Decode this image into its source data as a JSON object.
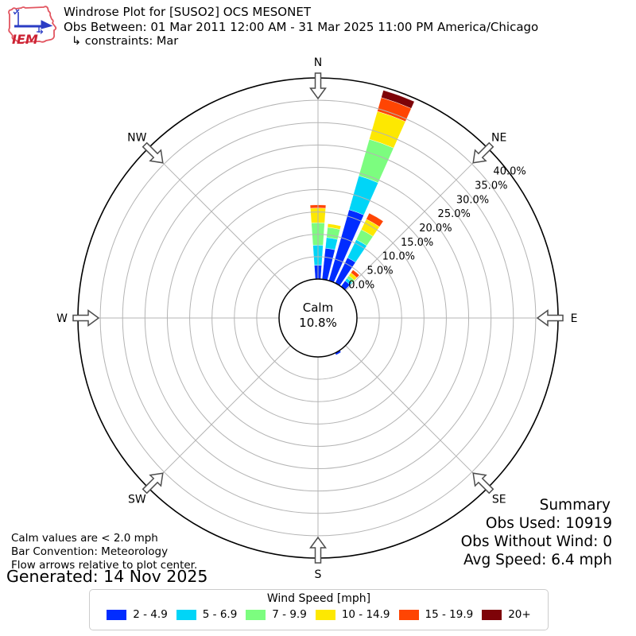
{
  "header": {
    "logo": "IEM",
    "title": "Windrose Plot for [SUSO2] OCS MESONET",
    "obs_between": "Obs Between: 01 Mar 2011 12:00 AM - 31 Mar 2025 11:00 PM America/Chicago",
    "constraints": "↳ constraints: Mar"
  },
  "footnotes": {
    "calm_note": "Calm values are < 2.0 mph",
    "bar_convention": "Bar Convention: Meteorology",
    "flow_arrows": "Flow arrows relative to plot center.",
    "generated": "Generated: 14 Nov 2025"
  },
  "summary": {
    "title": "Summary",
    "obs_used": "Obs Used: 10919",
    "obs_without_wind": "Obs Without Wind: 0",
    "avg_speed": "Avg Speed: 6.4 mph"
  },
  "legend": {
    "title": "Wind Speed [mph]"
  },
  "chart_data": {
    "type": "windrose",
    "units": "mph",
    "title": "Windrose Plot for [SUSO2] OCS MESONET",
    "compass_labels": [
      "N",
      "NE",
      "E",
      "SE",
      "S",
      "SW",
      "W",
      "NW"
    ],
    "radial_ticks_percent": [
      0,
      5,
      10,
      15,
      20,
      25,
      30,
      35,
      40
    ],
    "radial_tick_labels": [
      "0.0%",
      "5.0%",
      "10.0%",
      "15.0%",
      "20.0%",
      "25.0%",
      "30.0%",
      "35.0%",
      "40.0%"
    ],
    "r_axis_max_percent": 45,
    "grid_color": "#b4b4b4",
    "axis_color": "#000000",
    "arrow_outline_color": "#4d4d4d",
    "calm": {
      "label": "Calm",
      "percent": 10.8,
      "display": "10.8%"
    },
    "speed_bins": [
      {
        "label": "2 - 4.9",
        "color": "#012cff"
      },
      {
        "label": "5 - 6.9",
        "color": "#00d5f7"
      },
      {
        "label": "7 - 9.9",
        "color": "#7cfd7f"
      },
      {
        "label": "10 - 14.9",
        "color": "#fde801"
      },
      {
        "label": "15 - 19.9",
        "color": "#ff4503"
      },
      {
        "label": "20+",
        "color": "#7e0308"
      }
    ],
    "bar_width_deg": 8,
    "bars": [
      {
        "direction_deg": 0,
        "percents": [
          3.1,
          4.5,
          5.0,
          3.3,
          0.7,
          0
        ],
        "total": 16.6
      },
      {
        "direction_deg": 10,
        "percents": [
          7.0,
          2.4,
          2.3,
          0.8,
          0,
          0
        ],
        "total": 12.5
      },
      {
        "direction_deg": 20,
        "percents": [
          16.5,
          7.9,
          8.5,
          6.5,
          3.2,
          1.7
        ],
        "total": 44.3
      },
      {
        "direction_deg": 30,
        "percents": [
          6.3,
          4.5,
          2.5,
          2.6,
          1.5,
          0
        ],
        "total": 17.4
      },
      {
        "direction_deg": 40,
        "percents": [
          1.6,
          0.7,
          0.7,
          0.8,
          0.8,
          0
        ],
        "total": 4.6
      },
      {
        "direction_deg": 150,
        "percents": [
          0.5,
          0,
          0,
          0,
          0,
          0
        ],
        "total": 0.5
      }
    ]
  }
}
